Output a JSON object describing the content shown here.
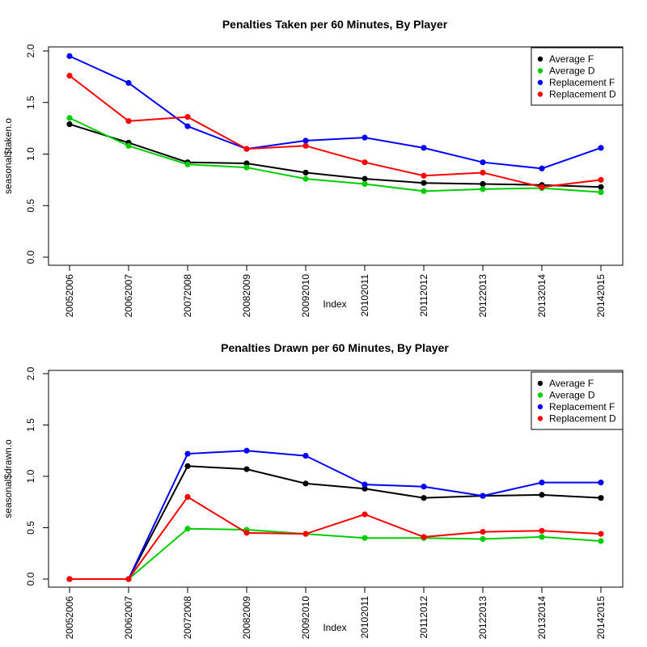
{
  "chart_data": [
    {
      "type": "line",
      "title": "Penalties Taken per 60 Minutes, By Player",
      "xlabel": "Index",
      "ylabel": "seasonal$taken.o",
      "categories": [
        "20052006",
        "20062007",
        "20072008",
        "20082009",
        "20092010",
        "20102011",
        "20112012",
        "20122013",
        "20132014",
        "20142015"
      ],
      "ylim": [
        0,
        2.0
      ],
      "yticks": [
        0.0,
        0.5,
        1.0,
        1.5,
        2.0
      ],
      "ytick_labels": [
        "0.0",
        "0.5",
        "1.0",
        "1.5",
        "2.0"
      ],
      "legend_position": "top-right",
      "grid": false,
      "series": [
        {
          "name": "Average F",
          "color": "#000000",
          "values": [
            1.29,
            1.11,
            0.92,
            0.91,
            0.82,
            0.76,
            0.72,
            0.71,
            0.7,
            0.68
          ]
        },
        {
          "name": "Average D",
          "color": "#00cd00",
          "values": [
            1.35,
            1.08,
            0.9,
            0.87,
            0.76,
            0.71,
            0.64,
            0.66,
            0.67,
            0.63
          ]
        },
        {
          "name": "Replacement F",
          "color": "#0000ff",
          "values": [
            1.95,
            1.69,
            1.27,
            1.05,
            1.13,
            1.16,
            1.06,
            0.92,
            0.86,
            1.06
          ]
        },
        {
          "name": "Replacement D",
          "color": "#ff0000",
          "values": [
            1.76,
            1.32,
            1.36,
            1.05,
            1.08,
            0.92,
            0.79,
            0.82,
            0.68,
            0.75
          ]
        }
      ]
    },
    {
      "type": "line",
      "title": "Penalties Drawn per 60 Minutes, By Player",
      "xlabel": "Index",
      "ylabel": "seasonal$drawn.o",
      "categories": [
        "20052006",
        "20062007",
        "20072008",
        "20082009",
        "20092010",
        "20102011",
        "20112012",
        "20122013",
        "20132014",
        "20142015"
      ],
      "ylim": [
        0,
        2.0
      ],
      "yticks": [
        0.0,
        0.5,
        1.0,
        1.5,
        2.0
      ],
      "ytick_labels": [
        "0.0",
        "0.5",
        "1.0",
        "1.5",
        "2.0"
      ],
      "legend_position": "top-right",
      "grid": false,
      "series": [
        {
          "name": "Average F",
          "color": "#000000",
          "values": [
            0.0,
            0.0,
            1.1,
            1.07,
            0.93,
            0.88,
            0.79,
            0.81,
            0.82,
            0.79
          ]
        },
        {
          "name": "Average D",
          "color": "#00cd00",
          "values": [
            0.0,
            0.0,
            0.49,
            0.48,
            0.44,
            0.4,
            0.4,
            0.39,
            0.41,
            0.37
          ]
        },
        {
          "name": "Replacement F",
          "color": "#0000ff",
          "values": [
            0.0,
            0.0,
            1.22,
            1.25,
            1.2,
            0.92,
            0.9,
            0.81,
            0.94,
            0.94
          ]
        },
        {
          "name": "Replacement D",
          "color": "#ff0000",
          "values": [
            0.0,
            0.0,
            0.8,
            0.45,
            0.44,
            0.63,
            0.41,
            0.46,
            0.47,
            0.44
          ]
        }
      ]
    }
  ]
}
